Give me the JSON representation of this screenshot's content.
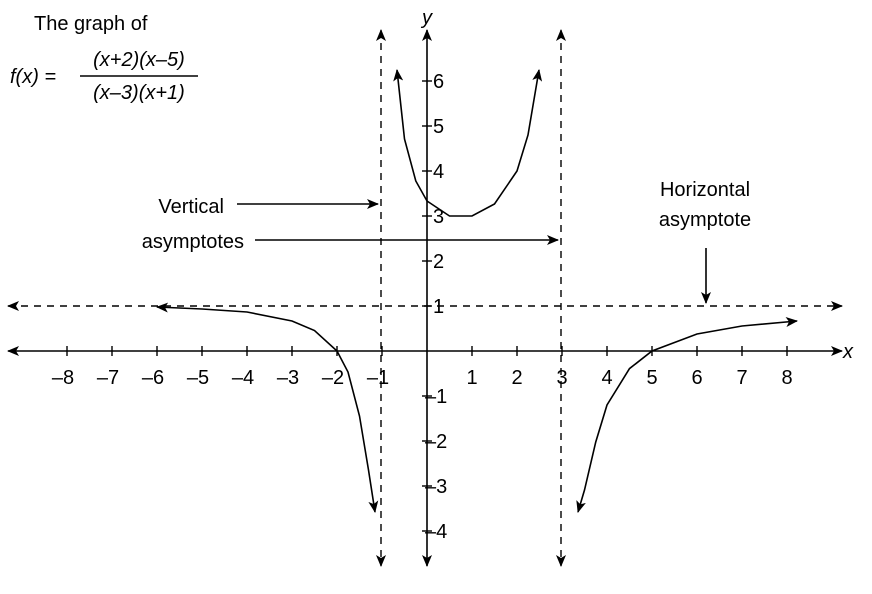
{
  "header": {
    "title": "The graph of",
    "formula": {
      "lhs": "f(x) =",
      "numerator": "(x+2)(x–5)",
      "denominator": "(x–3)(x+1)"
    }
  },
  "axes": {
    "x_name": "x",
    "y_name": "y",
    "x_ticks": [
      "–8",
      "–7",
      "–6",
      "–5",
      "–4",
      "–3",
      "–2",
      "–1",
      "1",
      "2",
      "3",
      "4",
      "5",
      "6",
      "7",
      "8"
    ],
    "y_ticks": [
      "6",
      "5",
      "4",
      "3",
      "2",
      "1",
      "–1",
      "–2",
      "–3",
      "–4"
    ]
  },
  "annotations": {
    "vertical": [
      "Vertical",
      "asymptotes"
    ],
    "horizontal": [
      "Horizontal",
      "asymptote"
    ]
  }
}
